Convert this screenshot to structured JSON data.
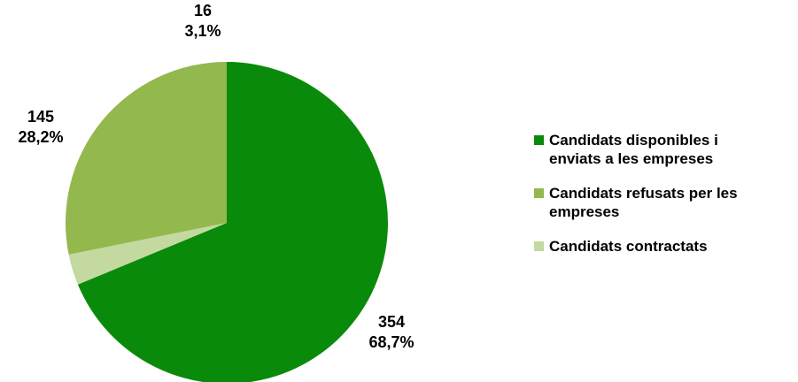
{
  "chart_data": {
    "type": "pie",
    "title": "",
    "start": "top",
    "direction": "clockwise",
    "legend_position": "right",
    "slices": [
      {
        "name": "Candidats disponibles i enviats a les empreses",
        "legend_label": "Candidats disponibles i\nenviats a les empreses",
        "value": 354,
        "percent_label": "68,7%",
        "color": "#0a8a0a"
      },
      {
        "name": "Candidats contractats",
        "legend_label": "Candidats contractats",
        "value": 16,
        "percent_label": "3,1%",
        "color": "#c3d9a0"
      },
      {
        "name": "Candidats refusats per les empreses",
        "legend_label": "Candidats refusats per les\nempreses",
        "value": 145,
        "percent_label": "28,2%",
        "color": "#93b84d"
      }
    ],
    "legend_order": [
      0,
      2,
      1
    ]
  }
}
